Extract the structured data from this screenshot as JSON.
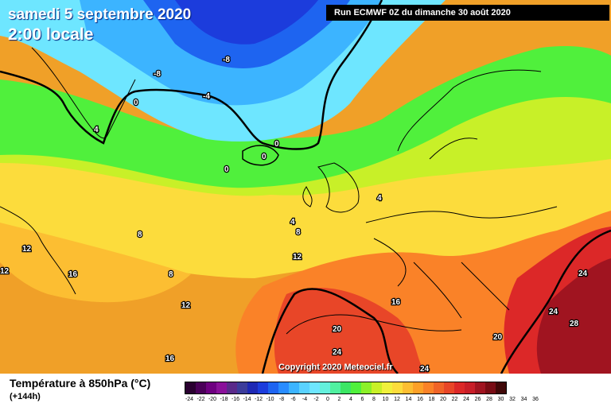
{
  "header": {
    "date": "samedi 5 septembre 2020",
    "time": "2:00 locale",
    "run": "Run ECMWF 0Z du dimanche 30 août 2020"
  },
  "copyright": "Copyright 2020 Meteociel.fr",
  "legend": {
    "title": "Température à 850hPa (°C)",
    "subtitle": "(+144h)",
    "ticks": [
      "-24",
      "-22",
      "-20",
      "-18",
      "-16",
      "-14",
      "-12",
      "-10",
      "-8",
      "-6",
      "-4",
      "-2",
      "0",
      "2",
      "4",
      "6",
      "8",
      "10",
      "12",
      "14",
      "16",
      "18",
      "20",
      "22",
      "24",
      "26",
      "28",
      "30",
      "32",
      "34",
      "36"
    ],
    "colors": [
      "#2a0030",
      "#4a0058",
      "#6e0080",
      "#8a109a",
      "#5a2a8a",
      "#3c3c9a",
      "#1e28b4",
      "#1c3cdc",
      "#1e64f0",
      "#288cff",
      "#3cb4ff",
      "#5ad2ff",
      "#6ee6ff",
      "#64f0dc",
      "#50f0a0",
      "#3ce664",
      "#50f03c",
      "#8cf028",
      "#c8f028",
      "#f0f03c",
      "#fcdc3c",
      "#fcbe32",
      "#fca028",
      "#fa8228",
      "#f06428",
      "#e84628",
      "#dc2828",
      "#c81e28",
      "#a01420",
      "#780c14",
      "#400808"
    ]
  },
  "map_labels": [
    "-8",
    "-8",
    "-4",
    "0",
    "0",
    "0",
    "0",
    "4",
    "4",
    "4",
    "8",
    "8",
    "8",
    "12",
    "12",
    "12",
    "12",
    "16",
    "16",
    "16",
    "20",
    "20",
    "24",
    "24",
    "24",
    "28"
  ]
}
